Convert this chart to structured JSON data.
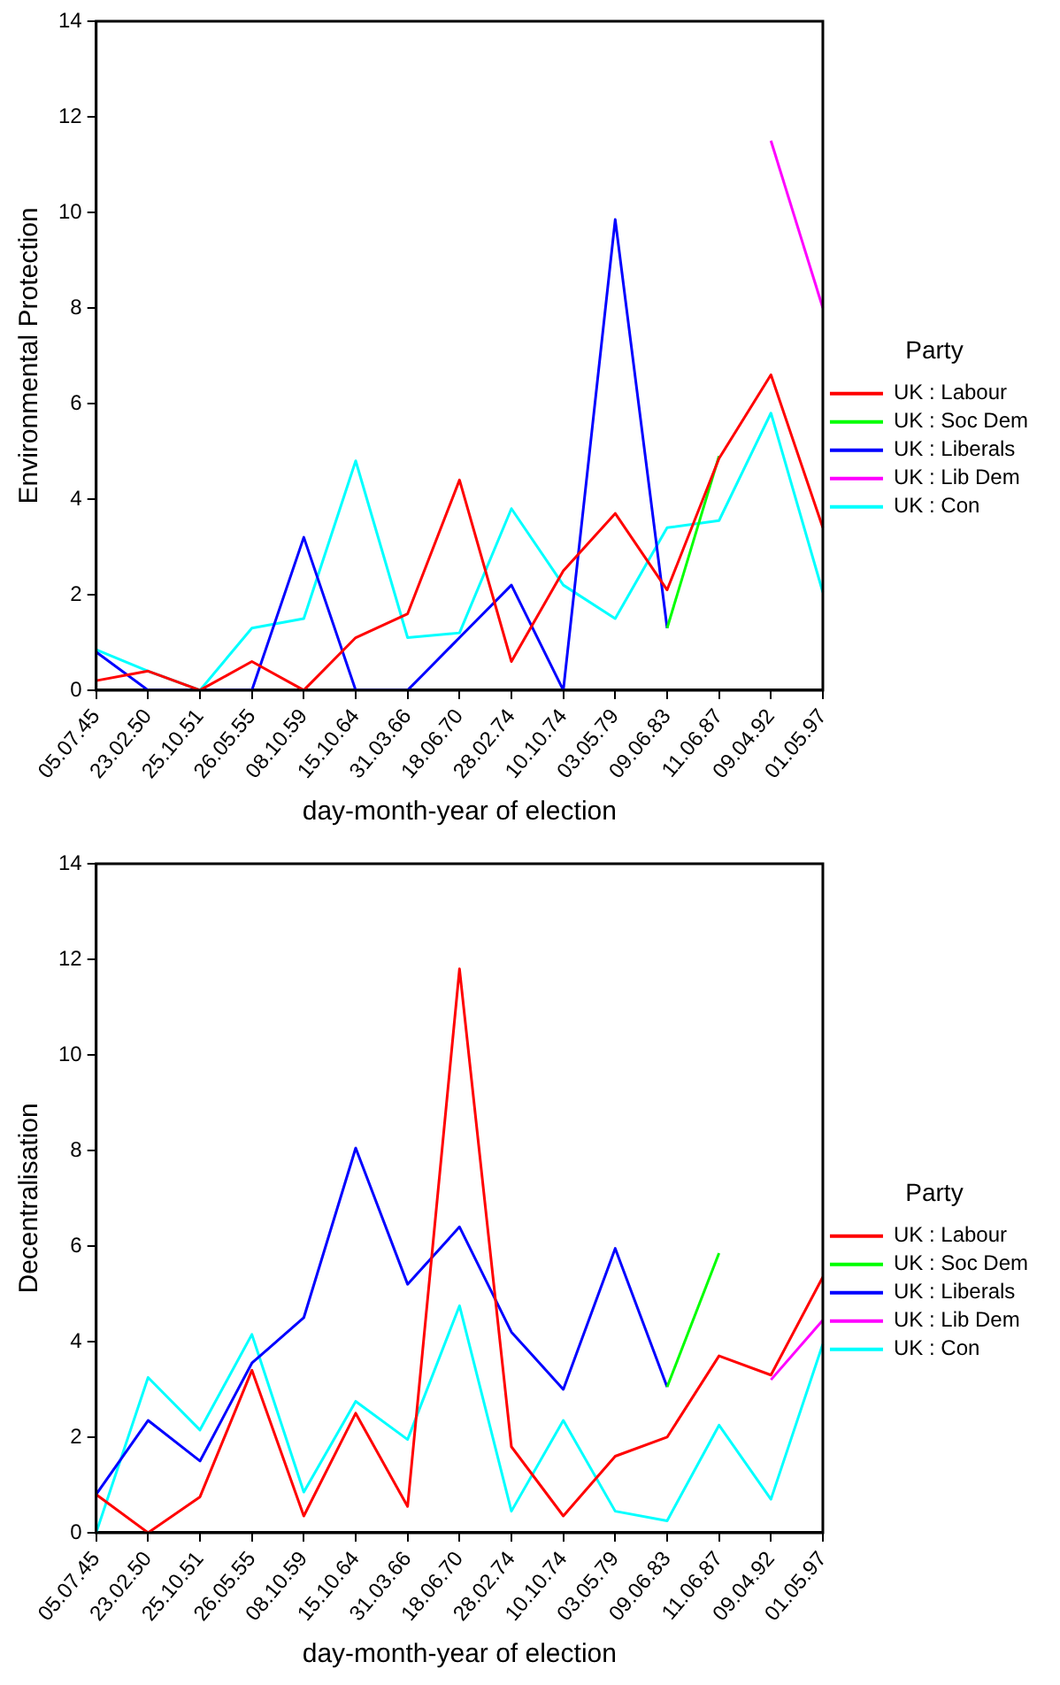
{
  "chart_data": [
    {
      "type": "line",
      "ylabel": "Environmental Protection",
      "xlabel": "day-month-year of election",
      "legend_title": "Party",
      "legend": "right",
      "grid": false,
      "marker": "none",
      "line_style": "solid",
      "categories": [
        "05.07.45",
        "23.02.50",
        "25.10.51",
        "26.05.55",
        "08.10.59",
        "15.10.64",
        "31.03.66",
        "18.06.70",
        "28.02.74",
        "10.10.74",
        "03.05.79",
        "09.06.83",
        "11.06.87",
        "09.04.92",
        "01.05.97"
      ],
      "ylim": [
        0,
        14
      ],
      "yticks": [
        0,
        2,
        4,
        6,
        8,
        10,
        12,
        14
      ],
      "series": [
        {
          "name": "UK : Labour",
          "color": "#ff0000",
          "values": [
            0.2,
            0.4,
            0,
            0.6,
            0,
            1.1,
            1.6,
            4.4,
            0.6,
            2.5,
            3.7,
            2.1,
            4.85,
            6.6,
            3.4
          ]
        },
        {
          "name": "UK : Soc Dem",
          "color": "#00ff00",
          "values": [
            null,
            null,
            null,
            null,
            null,
            null,
            null,
            null,
            null,
            null,
            null,
            1.3,
            4.9,
            null,
            null
          ]
        },
        {
          "name": "UK : Liberals",
          "color": "#0000ff",
          "values": [
            0.8,
            0,
            0,
            0,
            3.2,
            0,
            0,
            1.1,
            2.2,
            0,
            9.85,
            1.3,
            null,
            null,
            null
          ]
        },
        {
          "name": "UK : Lib Dem",
          "color": "#ff00ff",
          "values": [
            null,
            null,
            null,
            null,
            null,
            null,
            null,
            null,
            null,
            null,
            null,
            null,
            null,
            11.5,
            8.0
          ]
        },
        {
          "name": "UK : Con",
          "color": "#00ffff",
          "values": [
            0.85,
            0.4,
            0,
            1.3,
            1.5,
            4.8,
            1.1,
            1.2,
            3.8,
            2.2,
            1.5,
            3.4,
            3.55,
            5.8,
            2.05
          ]
        }
      ]
    },
    {
      "type": "line",
      "ylabel": "Decentralisation",
      "xlabel": "day-month-year of election",
      "legend_title": "Party",
      "legend": "right",
      "grid": false,
      "marker": "none",
      "line_style": "solid",
      "categories": [
        "05.07.45",
        "23.02.50",
        "25.10.51",
        "26.05.55",
        "08.10.59",
        "15.10.64",
        "31.03.66",
        "18.06.70",
        "28.02.74",
        "10.10.74",
        "03.05.79",
        "09.06.83",
        "11.06.87",
        "09.04.92",
        "01.05.97"
      ],
      "ylim": [
        0,
        14
      ],
      "yticks": [
        0,
        2,
        4,
        6,
        8,
        10,
        12,
        14
      ],
      "series": [
        {
          "name": "UK : Labour",
          "color": "#ff0000",
          "values": [
            0.8,
            0,
            0.75,
            3.4,
            0.35,
            2.5,
            0.55,
            11.8,
            1.8,
            0.35,
            1.6,
            2.0,
            3.7,
            3.3,
            5.35
          ]
        },
        {
          "name": "UK : Soc Dem",
          "color": "#00ff00",
          "values": [
            null,
            null,
            null,
            null,
            null,
            null,
            null,
            null,
            null,
            null,
            null,
            3.05,
            5.85,
            null,
            null
          ]
        },
        {
          "name": "UK : Liberals",
          "color": "#0000ff",
          "values": [
            0.8,
            2.35,
            1.5,
            3.55,
            4.5,
            8.05,
            5.2,
            6.4,
            4.2,
            3.0,
            5.95,
            3.05,
            null,
            null,
            null
          ]
        },
        {
          "name": "UK : Lib Dem",
          "color": "#ff00ff",
          "values": [
            null,
            null,
            null,
            null,
            null,
            null,
            null,
            null,
            null,
            null,
            null,
            null,
            null,
            3.2,
            4.45
          ]
        },
        {
          "name": "UK : Con",
          "color": "#00ffff",
          "values": [
            0,
            3.25,
            2.15,
            4.15,
            0.85,
            2.75,
            1.95,
            4.75,
            0.45,
            2.35,
            0.45,
            0.25,
            2.25,
            0.7,
            3.95
          ]
        }
      ]
    }
  ]
}
